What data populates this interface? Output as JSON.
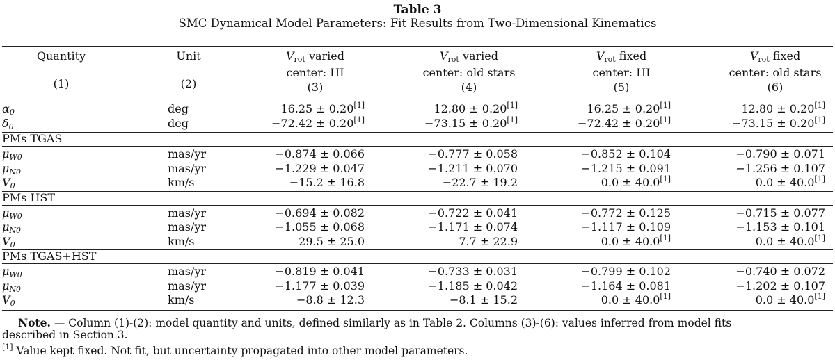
{
  "table_title": "Table 3",
  "table_subtitle": "SMC Dynamical Model Parameters: Fit Results from Two-Dimensional Kinematics",
  "headers": [
    {
      "line1": "Quantity",
      "line2": "",
      "num": "(1)"
    },
    {
      "line1": "Unit",
      "line2": "",
      "num": "(2)"
    },
    {
      "sym": "V",
      "symsub": "rot",
      "line1": "varied",
      "line2": "center: HI",
      "num": "(3)"
    },
    {
      "sym": "V",
      "symsub": "rot",
      "line1": "varied",
      "line2": "center: old stars",
      "num": "(4)"
    },
    {
      "sym": "V",
      "symsub": "rot",
      "line1": "fixed",
      "line2": "center: HI",
      "num": "(5)"
    },
    {
      "sym": "V",
      "symsub": "rot",
      "line1": "fixed",
      "line2": "center: old stars",
      "num": "(6)"
    }
  ],
  "rows_top": [
    {
      "q_sym": "α",
      "q_sub": "0",
      "unit": "deg",
      "vals": [
        "16.25 ± 0.20",
        "12.80 ± 0.20",
        "16.25 ± 0.20",
        "12.80 ± 0.20"
      ],
      "fn": [
        true,
        true,
        true,
        true
      ]
    },
    {
      "q_sym": "δ",
      "q_sub": "0",
      "unit": "deg",
      "vals": [
        "−72.42 ± 0.20",
        "−73.15 ± 0.20",
        "−72.42 ± 0.20",
        "−73.15 ± 0.20"
      ],
      "fn": [
        true,
        true,
        true,
        true
      ]
    }
  ],
  "sections": [
    {
      "label": "PMs TGAS",
      "rows": [
        {
          "q_sym": "μ",
          "q_sub": "W0",
          "unit": "mas/yr",
          "vals": [
            "−0.874 ± 0.066",
            "−0.777 ± 0.058",
            "−0.852 ± 0.104",
            "−0.790 ± 0.071"
          ],
          "fn": [
            false,
            false,
            false,
            false
          ]
        },
        {
          "q_sym": "μ",
          "q_sub": "N0",
          "unit": "mas/yr",
          "vals": [
            "−1.229 ± 0.047",
            "−1.211 ± 0.070",
            "−1.215 ± 0.091",
            "−1.256 ± 0.107"
          ],
          "fn": [
            false,
            false,
            false,
            false
          ]
        },
        {
          "q_sym": "V",
          "q_sub": "0",
          "unit": "km/s",
          "vals": [
            "−15.2 ± 16.8",
            "−22.7 ± 19.2",
            "0.0 ± 40.0",
            "0.0 ± 40.0"
          ],
          "fn": [
            false,
            false,
            true,
            true
          ]
        }
      ]
    },
    {
      "label": "PMs HST",
      "rows": [
        {
          "q_sym": "μ",
          "q_sub": "W0",
          "unit": "mas/yr",
          "vals": [
            "−0.694 ± 0.082",
            "−0.722 ± 0.041",
            "−0.772 ± 0.125",
            "−0.715 ± 0.077"
          ],
          "fn": [
            false,
            false,
            false,
            false
          ]
        },
        {
          "q_sym": "μ",
          "q_sub": "N0",
          "unit": "mas/yr",
          "vals": [
            "−1.055 ± 0.068",
            "−1.171 ± 0.074",
            "−1.117 ± 0.109",
            "−1.153 ± 0.101"
          ],
          "fn": [
            false,
            false,
            false,
            false
          ]
        },
        {
          "q_sym": "V",
          "q_sub": "0",
          "unit": "km/s",
          "vals": [
            "29.5 ± 25.0",
            "7.7 ± 22.9",
            "0.0 ± 40.0",
            "0.0 ± 40.0"
          ],
          "fn": [
            false,
            false,
            true,
            true
          ]
        }
      ]
    },
    {
      "label": "PMs TGAS+HST",
      "rows": [
        {
          "q_sym": "μ",
          "q_sub": "W0",
          "unit": "mas/yr",
          "vals": [
            "−0.819 ± 0.041",
            "−0.733 ± 0.031",
            "−0.799 ± 0.102",
            "−0.740 ± 0.072"
          ],
          "fn": [
            false,
            false,
            false,
            false
          ]
        },
        {
          "q_sym": "μ",
          "q_sub": "N0",
          "unit": "mas/yr",
          "vals": [
            "−1.177 ± 0.039",
            "−1.185 ± 0.042",
            "−1.164 ± 0.081",
            "−1.202 ± 0.107"
          ],
          "fn": [
            false,
            false,
            false,
            false
          ]
        },
        {
          "q_sym": "V",
          "q_sub": "0",
          "unit": "km/s",
          "vals": [
            "−8.8 ± 12.3",
            "−8.1 ± 15.2",
            "0.0 ± 40.0",
            "0.0 ± 40.0"
          ],
          "fn": [
            false,
            false,
            true,
            true
          ]
        }
      ]
    }
  ],
  "footnote_marker": "[1]",
  "note_label": "Note.",
  "note_line1": " — Column (1)-(2): model quantity and units, defined similarly as in Table 2. Columns (3)-(6): values inferred from model fits",
  "note_line2": "described in Section 3.",
  "footnote_text": " Value kept fixed. Not fit, but uncertainty propagated into other model parameters."
}
